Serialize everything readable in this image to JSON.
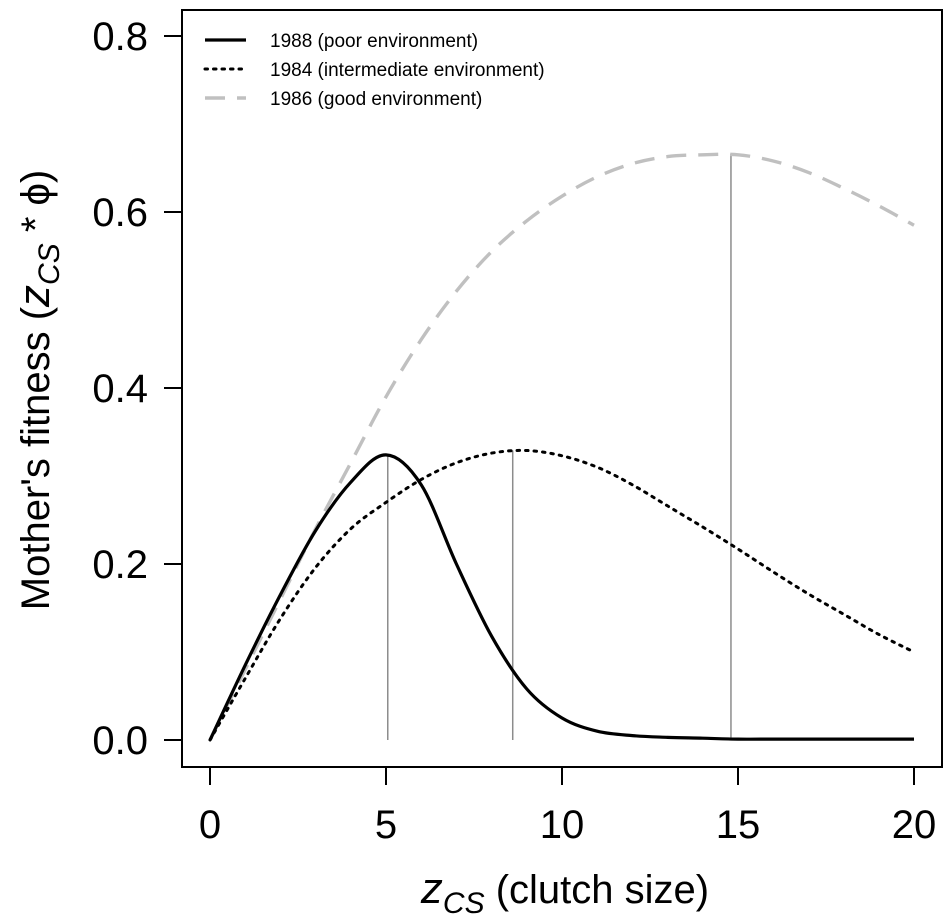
{
  "chart_data": {
    "type": "line",
    "xlabel_symbol": "z",
    "xlabel_subscript": "CS",
    "xlabel_text": " (clutch size)",
    "ylabel_prefix": "Mother's fitness (",
    "ylabel_symbol": "z",
    "ylabel_subscript": "CS",
    "ylabel_suffix": " * ϕ)",
    "xlim": [
      0,
      20
    ],
    "ylim": [
      0,
      0.8
    ],
    "xticks": [
      0,
      5,
      10,
      15,
      20
    ],
    "xtick_labels": [
      "0",
      "5",
      "10",
      "15",
      "20"
    ],
    "yticks": [
      0.0,
      0.2,
      0.4,
      0.6,
      0.8
    ],
    "ytick_labels": [
      "0.0",
      "0.2",
      "0.4",
      "0.6",
      "0.8"
    ],
    "grid": false,
    "legend_position": "top-left",
    "series": [
      {
        "name": "1988 (poor environment)",
        "style": "solid",
        "color": "#000000",
        "x": [
          0,
          1,
          2,
          3,
          4,
          5,
          6,
          7,
          8,
          9,
          10,
          11,
          12,
          13,
          14,
          15,
          16,
          17,
          18,
          19,
          20
        ],
        "values": [
          0.0,
          0.085,
          0.165,
          0.238,
          0.293,
          0.324,
          0.29,
          0.2,
          0.118,
          0.058,
          0.025,
          0.01,
          0.005,
          0.003,
          0.002,
          0.001,
          0.001,
          0.001,
          0.001,
          0.001,
          0.001
        ],
        "optimum_x": 5.05,
        "optimum_y": 0.324
      },
      {
        "name": "1984 (intermediate environment)",
        "style": "dotted",
        "color": "#000000",
        "x": [
          0,
          1,
          2,
          3,
          4,
          5,
          6,
          7,
          8,
          9,
          10,
          11,
          12,
          13,
          14,
          15,
          16,
          17,
          18,
          19,
          20
        ],
        "values": [
          0.0,
          0.07,
          0.138,
          0.196,
          0.24,
          0.27,
          0.296,
          0.315,
          0.326,
          0.329,
          0.323,
          0.31,
          0.29,
          0.266,
          0.242,
          0.217,
          0.191,
          0.166,
          0.143,
          0.12,
          0.1
        ],
        "optimum_x": 8.6,
        "optimum_y": 0.329
      },
      {
        "name": "1986 (good environment)",
        "style": "dashed",
        "color": "#c0c0c0",
        "x": [
          0,
          1,
          2,
          3,
          4,
          5,
          6,
          7,
          8,
          9,
          10,
          11,
          12,
          13,
          14,
          15,
          16,
          17,
          18,
          19,
          20
        ],
        "values": [
          0.0,
          0.08,
          0.16,
          0.24,
          0.315,
          0.39,
          0.455,
          0.51,
          0.555,
          0.59,
          0.618,
          0.64,
          0.655,
          0.663,
          0.665,
          0.665,
          0.658,
          0.645,
          0.627,
          0.607,
          0.585
        ],
        "optimum_x": 14.8,
        "optimum_y": 0.666
      }
    ]
  }
}
